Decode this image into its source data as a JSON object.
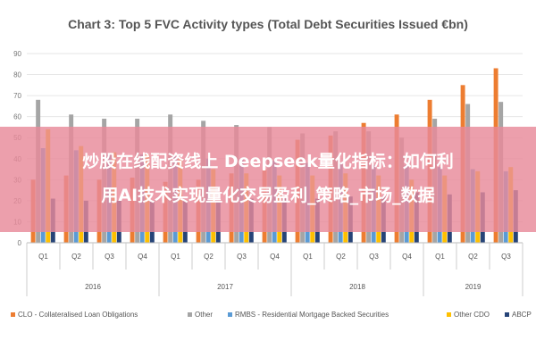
{
  "chart_data": {
    "type": "bar",
    "title": "Chart 3: Top 5 FVC Activity types (Total Debt Securities Issued €bn)",
    "ylim": [
      0,
      90
    ],
    "yticks": [
      0,
      10,
      20,
      30,
      40,
      50,
      60,
      70,
      80,
      90
    ],
    "categories": [
      "Q1",
      "Q2",
      "Q3",
      "Q4",
      "Q1",
      "Q2",
      "Q3",
      "Q4",
      "Q1",
      "Q2",
      "Q3",
      "Q4",
      "Q1",
      "Q2",
      "Q3"
    ],
    "years": [
      {
        "label": "2016",
        "span": 4
      },
      {
        "label": "2017",
        "span": 4
      },
      {
        "label": "2018",
        "span": 4
      },
      {
        "label": "2019",
        "span": 3
      }
    ],
    "series": [
      {
        "name": "CLO - Collateralised Loan Obligations",
        "color": "#ed7d31",
        "values": [
          30,
          32,
          30,
          31,
          29,
          30,
          33,
          35,
          49,
          51,
          57,
          61,
          68,
          75,
          83
        ]
      },
      {
        "name": "Other",
        "color": "#a5a5a5",
        "values": [
          68,
          61,
          59,
          59,
          61,
          58,
          56,
          55,
          52,
          53,
          53,
          50,
          59,
          66,
          67
        ]
      },
      {
        "name": "RMBS - Residential Mortgage Backed Securities",
        "color": "#5b9bd5",
        "values": [
          45,
          44,
          42,
          42,
          41,
          40,
          40,
          39,
          38,
          38,
          37,
          37,
          36,
          35,
          34
        ]
      },
      {
        "name": "Other CDO",
        "color": "#ffc000",
        "values": [
          54,
          46,
          43,
          42,
          40,
          35,
          33,
          32,
          32,
          33,
          32,
          30,
          32,
          34,
          36
        ]
      },
      {
        "name": "ABCP",
        "color": "#264478",
        "values": [
          21,
          20,
          20,
          20,
          20,
          20,
          21,
          21,
          21,
          22,
          22,
          24,
          23,
          24,
          25
        ]
      }
    ]
  },
  "overlay": {
    "line1": "炒股在线配资线上 Deepseek量化指标：如何利",
    "line2": "用AI技术实现量化交易盈利_策略_市场_数据"
  }
}
